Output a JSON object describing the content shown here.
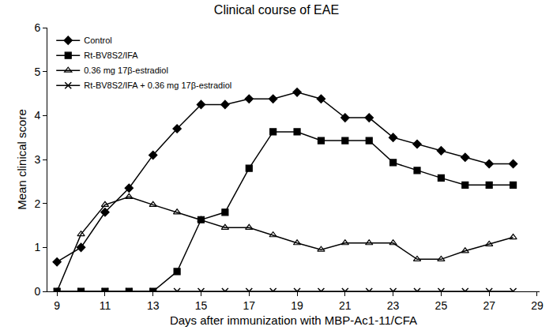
{
  "chart_data": {
    "type": "line",
    "title": "Clinical course of EAE",
    "x_label": "Days after immunization with MBP-Ac1-11/CFA",
    "y_label": "Mean clinical score",
    "x": [
      9,
      10,
      11,
      12,
      13,
      14,
      15,
      16,
      17,
      18,
      19,
      20,
      21,
      22,
      23,
      24,
      25,
      26,
      27,
      28
    ],
    "series": [
      {
        "name": "Control",
        "color": "#000000",
        "marker": "diamond",
        "line_style": "solid",
        "values": [
          0.67,
          1.0,
          1.8,
          2.35,
          3.1,
          3.7,
          4.25,
          4.25,
          4.38,
          4.38,
          4.53,
          4.38,
          3.95,
          3.95,
          3.5,
          3.35,
          3.2,
          3.05,
          2.9,
          2.9
        ]
      },
      {
        "name": "Rt-BV8S2/IFA",
        "color": "#000000",
        "marker": "square",
        "line_style": "solid",
        "values": [
          0,
          0,
          0,
          0,
          0,
          0.45,
          1.63,
          1.8,
          2.8,
          3.63,
          3.63,
          3.43,
          3.43,
          3.43,
          2.93,
          2.75,
          2.58,
          2.42,
          2.42,
          2.42
        ]
      },
      {
        "name": "0.36 mg 17β-estradiol",
        "color": "#000000",
        "marker": "triangle-up-open",
        "line_style": "solid",
        "values": [
          0,
          1.3,
          1.97,
          2.15,
          1.97,
          1.8,
          1.63,
          1.45,
          1.45,
          1.28,
          1.1,
          0.95,
          1.1,
          1.1,
          1.1,
          0.73,
          0.73,
          0.92,
          1.07,
          1.23
        ]
      },
      {
        "name": "Rt-BV8S2/IFA + 0.36 mg 17β-estradiol",
        "color": "#000000",
        "marker": "x",
        "line_style": "solid",
        "values": [
          0,
          0,
          0,
          0,
          0,
          0,
          0,
          0,
          0,
          0,
          0,
          0,
          0,
          0,
          0,
          0,
          0,
          0,
          0,
          0
        ]
      }
    ],
    "xlim": [
      8.6,
      29.1
    ],
    "xticks": [
      9,
      11,
      13,
      15,
      17,
      19,
      21,
      23,
      25,
      27,
      29
    ],
    "ylim": [
      0,
      6
    ],
    "yticks": [
      0,
      1,
      2,
      3,
      4,
      5,
      6
    ],
    "grid": false,
    "legend": "top-left"
  }
}
